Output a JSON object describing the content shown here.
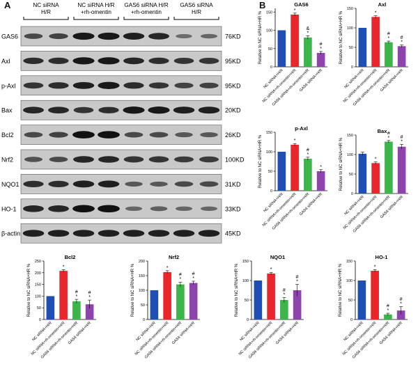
{
  "panel_a": "A",
  "panel_b": "B",
  "groups": [
    {
      "top": "NC siRNA",
      "bottom": "H/R"
    },
    {
      "top": "NC siRNA H/R",
      "bottom": "+rh-omentin"
    },
    {
      "top": "GAS6 siRNA H/R",
      "bottom": "+rh-omentin"
    },
    {
      "top": "GAS6 siRNA",
      "bottom": "H/R"
    }
  ],
  "blots": [
    {
      "protein": "GAS6",
      "size": "76KD",
      "lanes": [
        0.55,
        0.6,
        0.9,
        0.9,
        0.85,
        0.8,
        0.3,
        0.35
      ]
    },
    {
      "protein": "Axl",
      "size": "95KD",
      "lanes": [
        0.75,
        0.75,
        0.9,
        0.9,
        0.8,
        0.75,
        0.7,
        0.7
      ]
    },
    {
      "protein": "p-Axl",
      "size": "95KD",
      "lanes": [
        0.7,
        0.75,
        0.85,
        0.9,
        0.75,
        0.7,
        0.6,
        0.6
      ]
    },
    {
      "protein": "Bax",
      "size": "20KD",
      "lanes": [
        0.8,
        0.8,
        0.7,
        0.75,
        0.9,
        0.9,
        0.85,
        0.85
      ]
    },
    {
      "protein": "Bcl2",
      "size": "26KD",
      "lanes": [
        0.55,
        0.6,
        0.95,
        0.95,
        0.55,
        0.55,
        0.45,
        0.45
      ]
    },
    {
      "protein": "Nrf2",
      "size": "100KD",
      "lanes": [
        0.5,
        0.55,
        0.8,
        0.8,
        0.7,
        0.7,
        0.65,
        0.65
      ]
    },
    {
      "protein": "NQO1",
      "size": "31KD",
      "lanes": [
        0.75,
        0.75,
        0.85,
        0.85,
        0.45,
        0.45,
        0.55,
        0.55
      ]
    },
    {
      "protein": "HO-1",
      "size": "33KD",
      "lanes": [
        0.8,
        0.8,
        0.95,
        0.95,
        0.35,
        0.4,
        0.35,
        0.35
      ]
    },
    {
      "protein": "β-actin",
      "size": "45KD",
      "lanes": [
        0.85,
        0.85,
        0.85,
        0.85,
        0.85,
        0.85,
        0.85,
        0.85
      ]
    }
  ],
  "chart_data": [
    {
      "type": "bar",
      "title": "GAS6",
      "ylabel": "Relative to NC siRNA+HR %",
      "ylim": [
        0,
        160
      ],
      "ticks": [
        0,
        50,
        100,
        150
      ],
      "categories": [
        "NC siRNA+H/R",
        "NC siRNA+rh-omentin+H/R",
        "GAS6 siRNA+rh-omentin+H/R",
        "GAS6 siRNA+H/R"
      ],
      "values": [
        100,
        143,
        80,
        38
      ],
      "errors": [
        0,
        4,
        5,
        4
      ],
      "annotations": [
        "",
        "*",
        "&\n*",
        "#\n*"
      ],
      "colors": [
        "#1f4fb4",
        "#e8262b",
        "#3cb54a",
        "#8e44ad"
      ]
    },
    {
      "type": "bar",
      "title": "Axl",
      "ylabel": "Relative to NC siRNA+HR %",
      "ylim": [
        0,
        150
      ],
      "ticks": [
        0,
        50,
        100,
        150
      ],
      "categories": [
        "NC siRNA+H/R",
        "NC siRNA+rh-omentin+H/R",
        "GAS6 siRNA+rh-omentin+H/R",
        "GAS6 siRNA+H/R"
      ],
      "values": [
        100,
        128,
        63,
        53
      ],
      "errors": [
        0,
        3,
        3,
        3
      ],
      "annotations": [
        "",
        "*",
        "#\n*",
        "#\n*"
      ],
      "colors": [
        "#1f4fb4",
        "#e8262b",
        "#3cb54a",
        "#8e44ad"
      ]
    },
    {
      "type": "bar",
      "title": "p-Axl",
      "ylabel": "Relative to NC siRNA+HR %",
      "ylim": [
        0,
        150
      ],
      "ticks": [
        0,
        50,
        100,
        150
      ],
      "categories": [
        "NC siRNA+H/R",
        "NC siRNA+rh-omentin+H/R",
        "GAS6 siRNA+rh-omentin+H/R",
        "GAS6 siRNA+H/R"
      ],
      "values": [
        100,
        118,
        82,
        50
      ],
      "errors": [
        0,
        3,
        4,
        4
      ],
      "annotations": [
        "",
        "*",
        "#\n*",
        "*"
      ],
      "colors": [
        "#1f4fb4",
        "#e8262b",
        "#3cb54a",
        "#8e44ad"
      ]
    },
    {
      "type": "bar",
      "title": "Bax",
      "ylabel": "Relative to NC siRNA+HR %",
      "ylim": [
        0,
        150
      ],
      "ticks": [
        0,
        50,
        100,
        150
      ],
      "categories": [
        "NC siRNA+H/R",
        "NC siRNA+rh-omentin+H/R",
        "GAS6 siRNA+rh-omentin+H/R",
        "GAS6 siRNA+H/R"
      ],
      "values": [
        102,
        78,
        133,
        120
      ],
      "errors": [
        4,
        3,
        3,
        6
      ],
      "annotations": [
        "",
        "*",
        "#\n*",
        "#\n*"
      ],
      "colors": [
        "#1f4fb4",
        "#e8262b",
        "#3cb54a",
        "#8e44ad"
      ]
    },
    {
      "type": "bar",
      "title": "Bcl2",
      "ylabel": "Relative to NC siRNA+HR %",
      "ylim": [
        0,
        250
      ],
      "ticks": [
        0,
        50,
        100,
        150,
        200,
        250
      ],
      "categories": [
        "NC siRNA+H/R",
        "NC siRNA+rh-omentin+H/R",
        "GAS6 siRNA+rh-omentin+H/R",
        "GAS6 siRNA+H/R"
      ],
      "values": [
        100,
        208,
        78,
        65
      ],
      "errors": [
        0,
        5,
        8,
        18
      ],
      "annotations": [
        "",
        "*",
        "#\n*",
        "#\n*"
      ],
      "colors": [
        "#1f4fb4",
        "#e8262b",
        "#3cb54a",
        "#8e44ad"
      ]
    },
    {
      "type": "bar",
      "title": "Nrf2",
      "ylabel": "Relative to NC siRNA+HR %",
      "ylim": [
        0,
        200
      ],
      "ticks": [
        0,
        50,
        100,
        150,
        200
      ],
      "categories": [
        "NC siRNA+H/R",
        "NC siRNA+rh-omentin+H/R",
        "GAS6 siRNA+rh-omentin+H/R",
        "GAS6 siRNA+H/R"
      ],
      "values": [
        100,
        162,
        120,
        125
      ],
      "errors": [
        0,
        5,
        8,
        6
      ],
      "annotations": [
        "",
        "*",
        "#\n*",
        "#\n*"
      ],
      "colors": [
        "#1f4fb4",
        "#e8262b",
        "#3cb54a",
        "#8e44ad"
      ]
    },
    {
      "type": "bar",
      "title": "NQO1",
      "ylabel": "Relative to NC siRNA+HR %",
      "ylim": [
        0,
        150
      ],
      "ticks": [
        0,
        50,
        100,
        150
      ],
      "categories": [
        "NC siRNA+H/R",
        "NC siRNA+rh-omentin+H/R",
        "GAS6 siRNA+rh-omentin+H/R",
        "GAS6 siRNA+H/R"
      ],
      "values": [
        100,
        118,
        50,
        75
      ],
      "errors": [
        0,
        3,
        6,
        15
      ],
      "annotations": [
        "",
        "*",
        "#\n*",
        "#\n*"
      ],
      "colors": [
        "#1f4fb4",
        "#e8262b",
        "#3cb54a",
        "#8e44ad"
      ]
    },
    {
      "type": "bar",
      "title": "HO-1",
      "ylabel": "Relative to NC siRNA+HR %",
      "ylim": [
        0,
        150
      ],
      "ticks": [
        0,
        50,
        100,
        150
      ],
      "categories": [
        "NC siRNA+H/R",
        "NC siRNA+rh-omentin+H/R",
        "GAS6 siRNA+rh-omentin+H/R",
        "GAS6 siRNA+H/R"
      ],
      "values": [
        100,
        125,
        13,
        23
      ],
      "errors": [
        0,
        3,
        3,
        10
      ],
      "annotations": [
        "",
        "*",
        "#\n*",
        "#\n*"
      ],
      "colors": [
        "#1f4fb4",
        "#e8262b",
        "#3cb54a",
        "#8e44ad"
      ]
    }
  ]
}
